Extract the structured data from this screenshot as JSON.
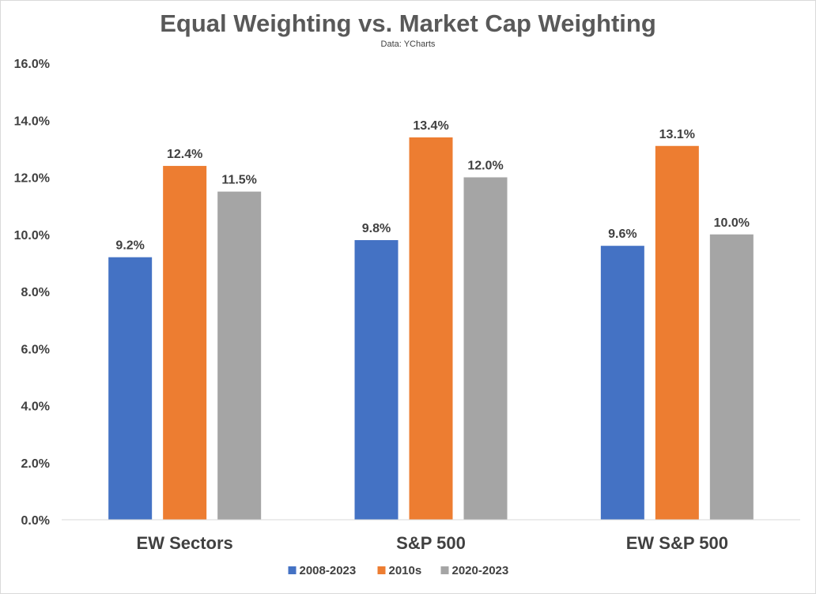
{
  "chart_data": {
    "type": "bar",
    "title": "Equal Weighting vs. Market Cap Weighting",
    "subtitle": "Data: YCharts",
    "categories": [
      "EW Sectors",
      "S&P 500",
      "EW S&P 500"
    ],
    "series": [
      {
        "name": "2008-2023",
        "color": "#4472c4",
        "values": [
          9.2,
          9.8,
          9.6
        ],
        "labels": [
          "9.2%",
          "9.8%",
          "9.6%"
        ]
      },
      {
        "name": "2010s",
        "color": "#ed7d31",
        "values": [
          12.4,
          13.4,
          13.1
        ],
        "labels": [
          "12.4%",
          "13.4%",
          "13.1%"
        ]
      },
      {
        "name": "2020-2023",
        "color": "#a5a5a5",
        "values": [
          11.5,
          12.0,
          10.0
        ],
        "labels": [
          "11.5%",
          "12.0%",
          "10.0%"
        ]
      }
    ],
    "ylim": [
      0,
      16
    ],
    "yticks": [
      0,
      2,
      4,
      6,
      8,
      10,
      12,
      14,
      16
    ],
    "ytick_labels": [
      "0.0%",
      "2.0%",
      "4.0%",
      "6.0%",
      "8.0%",
      "10.0%",
      "12.0%",
      "14.0%",
      "16.0%"
    ],
    "xlabel": "",
    "ylabel": "",
    "grid": false,
    "legend_position": "bottom"
  }
}
